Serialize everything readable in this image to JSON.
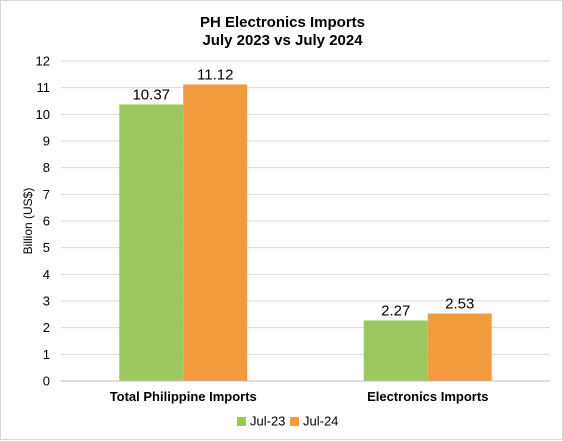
{
  "chart_data": {
    "type": "bar",
    "title_line1": "PH Electronics Imports",
    "title_line2": "July 2023 vs July 2024",
    "xlabel": "",
    "ylabel": "Billion (US$)",
    "ylim": [
      0,
      12
    ],
    "yticks": [
      "0",
      "1",
      "2",
      "3",
      "4",
      "5",
      "6",
      "7",
      "8",
      "9",
      "10",
      "11",
      "12"
    ],
    "categories": [
      "Total Philippine Imports",
      "Electronics Imports"
    ],
    "series": [
      {
        "name": "Jul-23",
        "color": "#9bc75e",
        "values": [
          10.37,
          2.27
        ],
        "labels": [
          "10.37",
          "2.27"
        ]
      },
      {
        "name": "Jul-24",
        "color": "#f29b3e",
        "values": [
          11.12,
          2.53
        ],
        "labels": [
          "11.12",
          "2.53"
        ]
      }
    ],
    "grid": true,
    "legend_position": "bottom"
  }
}
